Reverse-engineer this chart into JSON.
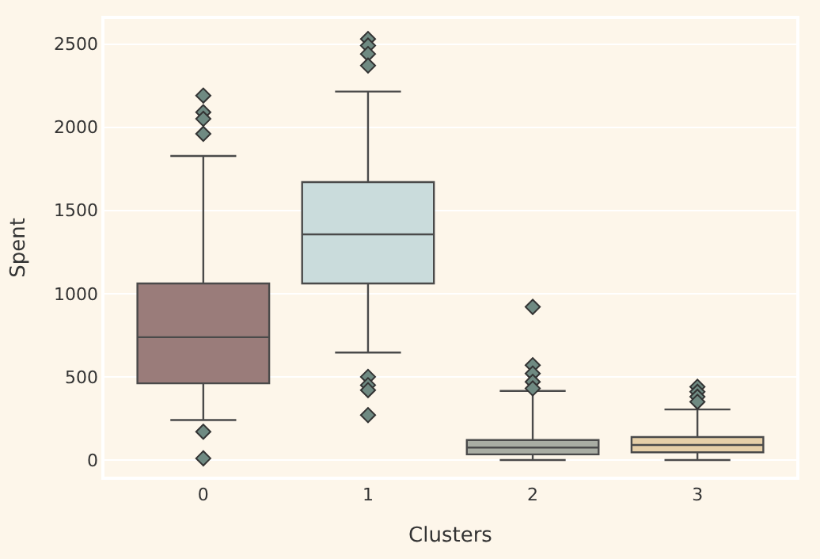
{
  "chart_data": {
    "type": "box",
    "xlabel": "Clusters",
    "ylabel": "Spent",
    "categories": [
      "0",
      "1",
      "2",
      "3"
    ],
    "colors": [
      "#9a7c7a",
      "#cadcdc",
      "#a9ada3",
      "#e6cfa8"
    ],
    "boxes": [
      {
        "low": 240,
        "q1": 461,
        "median": 738,
        "q3": 1061,
        "high": 1827,
        "outliers": [
          2190,
          2090,
          2050,
          1960,
          170,
          10
        ]
      },
      {
        "low": 646,
        "q1": 1061,
        "median": 1356,
        "q3": 1670,
        "high": 2214,
        "outliers": [
          2530,
          2490,
          2440,
          2370,
          500,
          450,
          420,
          270
        ]
      },
      {
        "low": 0,
        "q1": 34,
        "median": 75,
        "q3": 120,
        "high": 415,
        "outliers": [
          920,
          570,
          520,
          470,
          430
        ]
      },
      {
        "low": 0,
        "q1": 46,
        "median": 90,
        "q3": 138,
        "high": 304,
        "outliers": [
          440,
          410,
          380,
          350
        ]
      }
    ],
    "ylim": [
      -100,
      2650
    ],
    "yticks": [
      0,
      500,
      1000,
      1500,
      2000,
      2500
    ],
    "grid": "y"
  }
}
